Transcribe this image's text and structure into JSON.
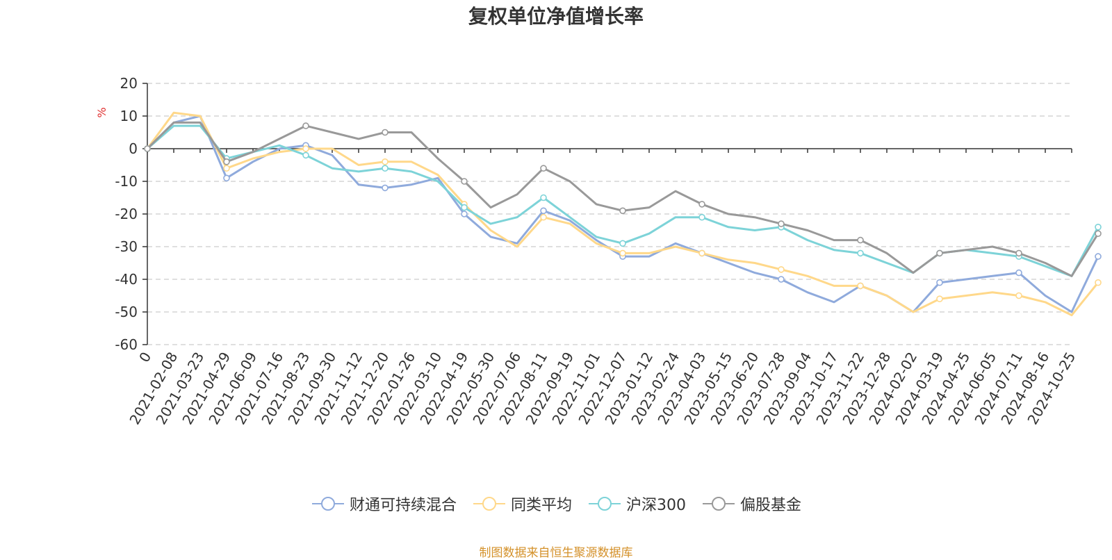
{
  "chart_data": {
    "type": "line",
    "title": "复权单位净值增长率",
    "ylabel": "%",
    "ylim": [
      -60,
      20
    ],
    "y_ticks": [
      20,
      10,
      0,
      -10,
      -20,
      -30,
      -40,
      -50,
      -60
    ],
    "x_tick_labels": [
      "0",
      "2021-02-08",
      "2021-03-23",
      "2021-04-29",
      "2021-06-09",
      "2021-07-16",
      "2021-08-23",
      "2021-09-30",
      "2021-11-12",
      "2021-12-20",
      "2022-01-26",
      "2022-03-10",
      "2022-04-19",
      "2022-05-30",
      "2022-07-06",
      "2022-08-11",
      "2022-09-19",
      "2022-11-01",
      "2022-12-07",
      "2023-01-12",
      "2023-02-24",
      "2023-04-03",
      "2023-05-15",
      "2023-06-20",
      "2023-07-28",
      "2023-09-04",
      "2023-10-17",
      "2023-11-22",
      "2023-12-28",
      "2024-02-02",
      "2024-03-19",
      "2024-04-25",
      "2024-06-05",
      "2024-07-11",
      "2024-08-16",
      "2024-10-25"
    ],
    "series": [
      {
        "name": "财通可持续混合",
        "color": "#8faadc",
        "values": [
          0,
          8,
          10,
          -9,
          -4,
          0,
          1,
          -2,
          -11,
          -12,
          -11,
          -9,
          -20,
          -27,
          -29,
          -19,
          -22,
          -28,
          -33,
          -33,
          -29,
          -32,
          -35,
          -38,
          -40,
          -44,
          -47,
          -42,
          -45,
          -50,
          -41,
          -40,
          -39,
          -38,
          -45,
          -50,
          -33
        ]
      },
      {
        "name": "同类平均",
        "color": "#ffd88a",
        "values": [
          0,
          11,
          10,
          -6,
          -3,
          -1,
          0,
          0,
          -5,
          -4,
          -4,
          -8,
          -17,
          -25,
          -30,
          -21,
          -23,
          -29,
          -32,
          -32,
          -30,
          -32,
          -34,
          -35,
          -37,
          -39,
          -42,
          -42,
          -45,
          -50,
          -46,
          -45,
          -44,
          -45,
          -47,
          -51,
          -41
        ]
      },
      {
        "name": "沪深300",
        "color": "#7dd3d8",
        "values": [
          0,
          7,
          7,
          -3,
          -1,
          1,
          -2,
          -6,
          -7,
          -6,
          -7,
          -10,
          -18,
          -23,
          -21,
          -15,
          -21,
          -27,
          -29,
          -26,
          -21,
          -21,
          -24,
          -25,
          -24,
          -28,
          -31,
          -32,
          -35,
          -38,
          -32,
          -31,
          -32,
          -33,
          -36,
          -39,
          -24
        ]
      },
      {
        "name": "偏股基金",
        "color": "#999999",
        "values": [
          0,
          8,
          8,
          -4,
          -1,
          3,
          7,
          5,
          3,
          5,
          5,
          -3,
          -10,
          -18,
          -14,
          -6,
          -10,
          -17,
          -19,
          -18,
          -13,
          -17,
          -20,
          -21,
          -23,
          -25,
          -28,
          -28,
          -32,
          -38,
          -32,
          -31,
          -30,
          -32,
          -35,
          -39,
          -26
        ]
      }
    ]
  },
  "legend": {
    "items": [
      "财通可持续混合",
      "同类平均",
      "沪深300",
      "偏股基金"
    ]
  },
  "source_note": "制图数据来自恒生聚源数据库"
}
